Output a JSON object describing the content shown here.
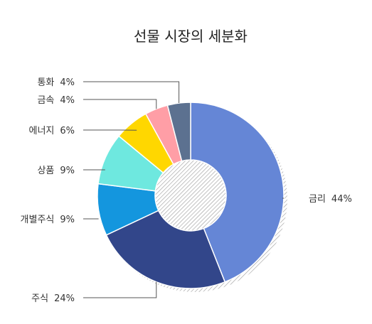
{
  "chart_data": {
    "type": "pie",
    "title": "선물 시장의 세분화",
    "donut": true,
    "slices": [
      {
        "label": "금리",
        "value": 44,
        "value_label": "44%",
        "color": "#6586D6"
      },
      {
        "label": "주식",
        "value": 24,
        "value_label": "24%",
        "color": "#32468A"
      },
      {
        "label": "개별주식",
        "value": 9,
        "value_label": "9%",
        "color": "#1496DE"
      },
      {
        "label": "상품",
        "value": 9,
        "value_label": "9%",
        "color": "#6EE8DF"
      },
      {
        "label": "에너지",
        "value": 6,
        "value_label": "6%",
        "color": "#FFD700"
      },
      {
        "label": "금속",
        "value": 4,
        "value_label": "4%",
        "color": "#FF9EA6"
      },
      {
        "label": "통화",
        "value": 4,
        "value_label": "4%",
        "color": "#5C7190"
      }
    ]
  }
}
